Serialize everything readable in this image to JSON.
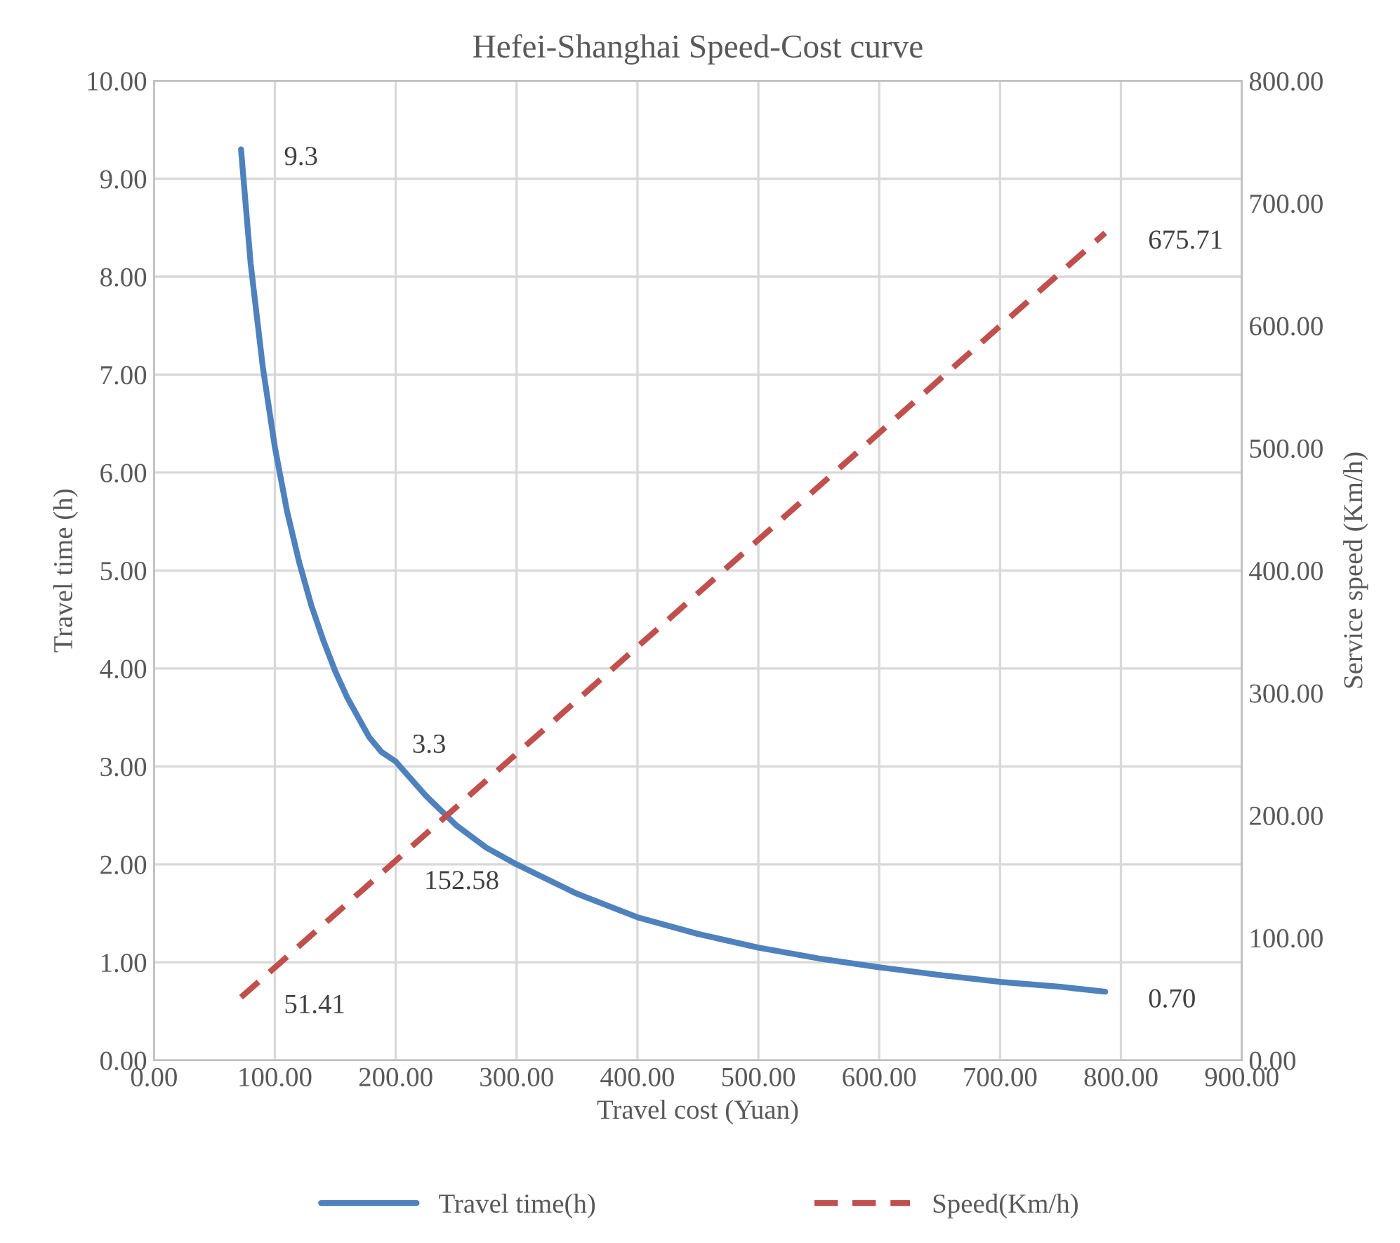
{
  "chart_data": {
    "type": "line",
    "title": "Hefei-Shanghai Speed-Cost curve",
    "xlabel": "Travel cost (Yuan)",
    "ylabel": "Travel time (h)",
    "y2label": "Service speed (Km/h)",
    "series": [
      {
        "name": "Travel time(h)",
        "color": "#4f81bd",
        "line_style": "solid",
        "x": [
          72,
          80,
          90,
          100,
          110,
          120,
          130,
          140,
          150,
          160,
          178,
          188,
          200,
          225,
          250,
          275,
          300,
          350,
          400,
          450,
          500,
          550,
          600,
          650,
          700,
          750,
          787
        ],
        "values": [
          9.3,
          8.13,
          7.08,
          6.26,
          5.61,
          5.09,
          4.65,
          4.29,
          3.97,
          3.7,
          3.3,
          3.15,
          3.05,
          2.7,
          2.4,
          2.17,
          2.0,
          1.7,
          1.46,
          1.29,
          1.15,
          1.04,
          0.95,
          0.87,
          0.8,
          0.75,
          0.7
        ],
        "value_labels": [
          "9.3",
          null,
          null,
          null,
          null,
          null,
          null,
          null,
          null,
          null,
          "3.3",
          null,
          null,
          null,
          null,
          null,
          null,
          null,
          null,
          null,
          null,
          null,
          null,
          null,
          null,
          null,
          "0.70"
        ]
      },
      {
        "name": "Speed(Km/h)",
        "color": "#c0504d",
        "line_style": "dashed",
        "axis": "y2",
        "x": [
          72,
          188,
          787
        ],
        "values": [
          51.41,
          152.58,
          675.71
        ],
        "value_labels": [
          "51.41",
          "152.58",
          "675.71"
        ]
      }
    ],
    "xlim": [
      0,
      900
    ],
    "xticks": [
      {
        "value": 0,
        "label": "0.00"
      },
      {
        "value": 100,
        "label": "100.00"
      },
      {
        "value": 200,
        "label": "200.00"
      },
      {
        "value": 300,
        "label": "300.00"
      },
      {
        "value": 400,
        "label": "400.00"
      },
      {
        "value": 500,
        "label": "500.00"
      },
      {
        "value": 600,
        "label": "600.00"
      },
      {
        "value": 700,
        "label": "700.00"
      },
      {
        "value": 800,
        "label": "800.00"
      },
      {
        "value": 900,
        "label": "900.00"
      }
    ],
    "ylim": [
      0,
      10
    ],
    "yticks": [
      {
        "value": 0,
        "label": "0.00"
      },
      {
        "value": 1,
        "label": "1.00"
      },
      {
        "value": 2,
        "label": "2.00"
      },
      {
        "value": 3,
        "label": "3.00"
      },
      {
        "value": 4,
        "label": "4.00"
      },
      {
        "value": 5,
        "label": "5.00"
      },
      {
        "value": 6,
        "label": "6.00"
      },
      {
        "value": 7,
        "label": "7.00"
      },
      {
        "value": 8,
        "label": "8.00"
      },
      {
        "value": 9,
        "label": "9.00"
      },
      {
        "value": 10,
        "label": "10.00"
      }
    ],
    "y2lim": [
      0,
      800
    ],
    "y2ticks": [
      {
        "value": 0,
        "label": "0.00"
      },
      {
        "value": 100,
        "label": "100.00"
      },
      {
        "value": 200,
        "label": "200.00"
      },
      {
        "value": 300,
        "label": "300.00"
      },
      {
        "value": 400,
        "label": "400.00"
      },
      {
        "value": 500,
        "label": "500.00"
      },
      {
        "value": 600,
        "label": "600.00"
      },
      {
        "value": 700,
        "label": "700.00"
      },
      {
        "value": 800,
        "label": "800.00"
      }
    ],
    "grid": true,
    "legend": "bottom",
    "marker": "none"
  }
}
